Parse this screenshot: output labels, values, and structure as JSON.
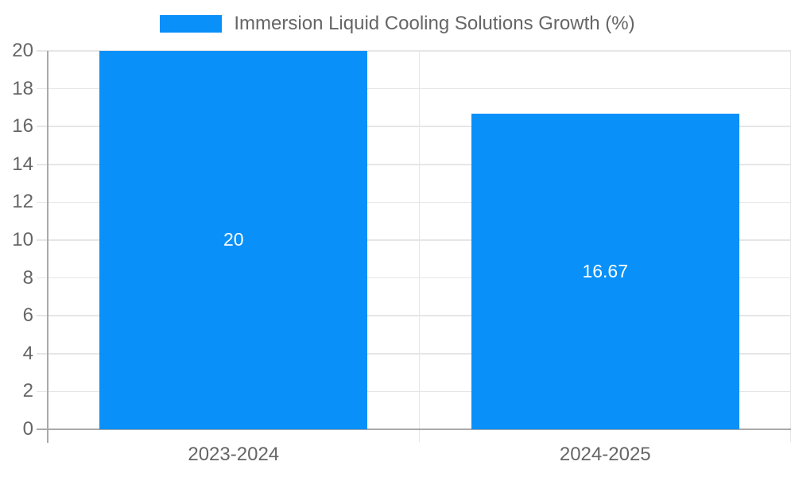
{
  "chart_data": {
    "type": "bar",
    "legend_label": "Immersion Liquid Cooling Solutions Growth (%)",
    "categories": [
      "2023-2024",
      "2024-2025"
    ],
    "values": [
      20,
      16.67
    ],
    "value_labels": [
      "20",
      "16.67"
    ],
    "title": "",
    "xlabel": "",
    "ylabel": "",
    "ylim": [
      0,
      20
    ],
    "yticks": [
      0,
      2,
      4,
      6,
      8,
      10,
      12,
      14,
      16,
      18,
      20
    ],
    "grid": true,
    "legend_position": "top-center",
    "bar_label_position": "inside-center",
    "colors": {
      "bar": "#0990f9",
      "bar_label_text": "#ffffff",
      "gridline": "#e6e6e6",
      "axis_line": "#a9a9a9",
      "tick_text": "#666666",
      "background": "#ffffff"
    }
  }
}
